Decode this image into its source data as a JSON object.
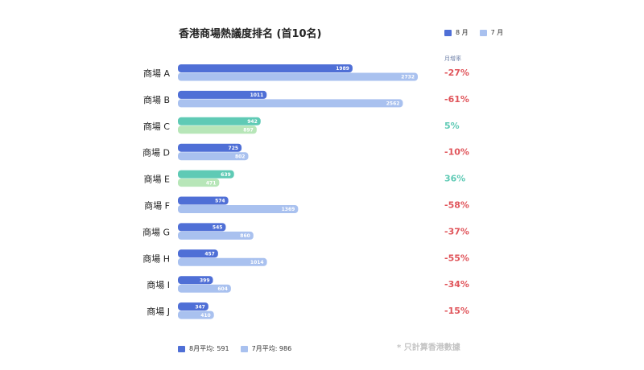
{
  "title": "香港商場熱議度排名 (首10名)",
  "legend": [
    {
      "label": "8 月",
      "color": "#4f6fd6"
    },
    {
      "label": "7 月",
      "color": "#a9c1ef"
    }
  ],
  "change_header": "月增率",
  "footer": {
    "avg_aug": "8月平均: 591",
    "avg_jul": "7月平均: 986",
    "note": "* 只計算香港數據"
  },
  "colors": {
    "aug": "#4f6fd6",
    "jul": "#a9c1ef",
    "aug_up": "#5fcab5",
    "jul_up": "#b7e6b8",
    "negative": "#e0545a",
    "positive": "#5fcab5"
  },
  "chart_data": {
    "type": "bar",
    "orientation": "horizontal",
    "categories": [
      "商場 A",
      "商場 B",
      "商場 C",
      "商場 D",
      "商場 E",
      "商場 F",
      "商場 G",
      "商場 H",
      "商場 I",
      "商場 J"
    ],
    "series": [
      {
        "name": "8 月",
        "values": [
          1989,
          1011,
          942,
          725,
          639,
          574,
          545,
          457,
          399,
          347
        ]
      },
      {
        "name": "7 月",
        "values": [
          2732,
          2562,
          897,
          802,
          471,
          1369,
          860,
          1014,
          604,
          410
        ]
      }
    ],
    "change_labels": [
      "-27%",
      "-61%",
      "5%",
      "-10%",
      "36%",
      "-58%",
      "-37%",
      "-55%",
      "-34%",
      "-15%"
    ],
    "grid": false,
    "legend_position": "top-right"
  }
}
